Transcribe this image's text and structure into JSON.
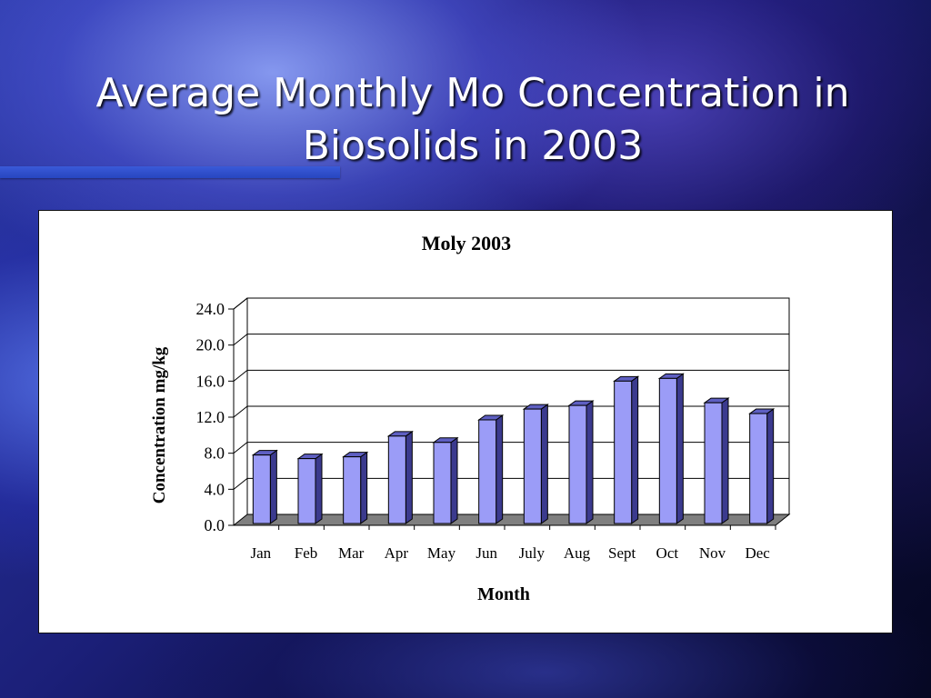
{
  "slide": {
    "title_line1": "Average Monthly Mo Concentration in",
    "title_line2": "Biosolids in 2003"
  },
  "chart_data": {
    "type": "bar",
    "title": "Moly 2003",
    "xlabel": "Month",
    "ylabel": "Concentration  mg/kg",
    "categories": [
      "Jan",
      "Feb",
      "Mar",
      "Apr",
      "May",
      "Jun",
      "July",
      "Aug",
      "Sept",
      "Oct",
      "Nov",
      "Dec"
    ],
    "values": [
      7.8,
      7.4,
      7.6,
      9.9,
      9.2,
      11.7,
      12.9,
      13.3,
      16.0,
      16.3,
      13.6,
      12.4
    ],
    "ylim": [
      0,
      24
    ],
    "yticks": [
      "0.0",
      "4.0",
      "8.0",
      "12.0",
      "16.0",
      "20.0",
      "24.0"
    ],
    "grid": true,
    "style": "3d",
    "colors": {
      "bar_front": "#9b9cf7",
      "bar_side": "#3b3a8e",
      "bar_top": "#5e5fc2",
      "floor": "#7f7f7f"
    }
  }
}
